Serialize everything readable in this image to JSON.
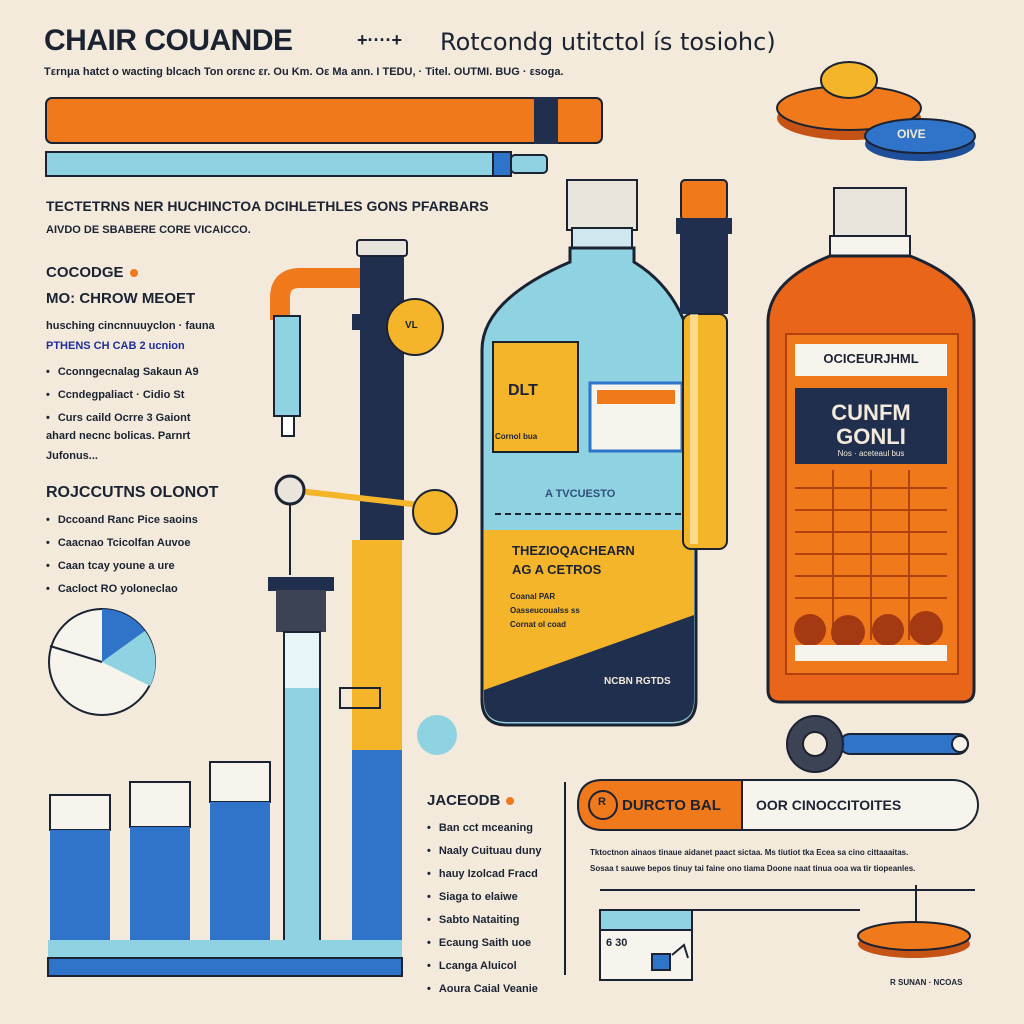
{
  "header": {
    "title": "CHAIR COUANDE",
    "separator": "+····+",
    "subtitle": "Rotcondg utitctol ís tosiohc)",
    "intro": "Tεrnμa hatct o wacting blcach Ton orεnc εr. Ou Km. Oε Ma ann. I TEDU, · Titel. OUTMI. BUG · εsoga."
  },
  "left_column": {
    "section1_head": "TECTETRNS NER HUCHINCTOA DCIHLETHLES GONS PFARBARS",
    "section1_sub": "AIVDO DE SBABERE CORE VICAICCO.",
    "section2_head": "COCODGE",
    "section2_sub": "MO: CHROW MEOET",
    "section2_line1": "husching cincnnuuyclon · fauna",
    "section2_line2": "PTHENS CH CAB 2 ucnion",
    "section2_items": [
      "Cconngecnalag Sakaun A9",
      "Ccndegpaliact · Cidio St",
      "Curs caild Ocrre 3 Gaiont"
    ],
    "section2_footer": "ahard necnc bolicas. Parnrt",
    "section2_footer2": "Jufonus...",
    "section3_head": "ROJCCUTNS OLONOT",
    "section3_items": [
      "Dccoand Ranc Pice saoins",
      "Caacnao Tcicolfan Auvoe",
      "Caan tcay youne a ure",
      "Cacloct RO yoloneclao"
    ]
  },
  "center": {
    "pipe_label": "VL",
    "bottle_blue": {
      "tag": "DLT",
      "small_tag": "Cornol bua",
      "mid_text": "A TVCUESTO",
      "band_title": "THEZIOQACHEARN",
      "band_sub": "AG A CETROS",
      "band_rows": [
        "Coanal PAR",
        "Oasseucoualss ss",
        "Cornat ol coad"
      ],
      "footer": "NCBN RGTDS"
    }
  },
  "right": {
    "lid_label": "OIVE",
    "bottle_orange": {
      "top_label": "OCICEURJHML",
      "main_label_line1": "CUNFM",
      "main_label_line2": "GONLI",
      "main_label_small": "Nos · aceteaul bus"
    },
    "section_head": "JACEODB",
    "items": [
      "Ban cct mceaning",
      "Naaly Cuituau duny",
      "hauy Izolcad Fracd",
      "Siaga to elaiwe",
      "Sabto Nataiting",
      "Ecaung Saith uoe",
      "Lcanga Aluicol",
      "Aoura Caial Veanie"
    ],
    "banner_left": "DURCTO BAL",
    "banner_right": "OOR CINOCCITOITES",
    "banner_note1": "Tktoctnon ainaos tinaue aidanet paact sictaa. Ms tiutiot tka Ecea sa cino cittaaaitas.",
    "banner_note2": "Sosaa t sauwe bepos tinuy tai faine ono tiama Doone naat tinua ooa wa tir tiopeanles.",
    "gauge_value": "6 30",
    "footer_note": "R SUNAN · NCOAS"
  },
  "colors": {
    "background": "#f3eadb",
    "orange": "#f07a1b",
    "light_blue": "#8fd3e3",
    "navy": "#1f2f4d",
    "yellow": "#f4b52a",
    "blue": "#2f74c9"
  }
}
